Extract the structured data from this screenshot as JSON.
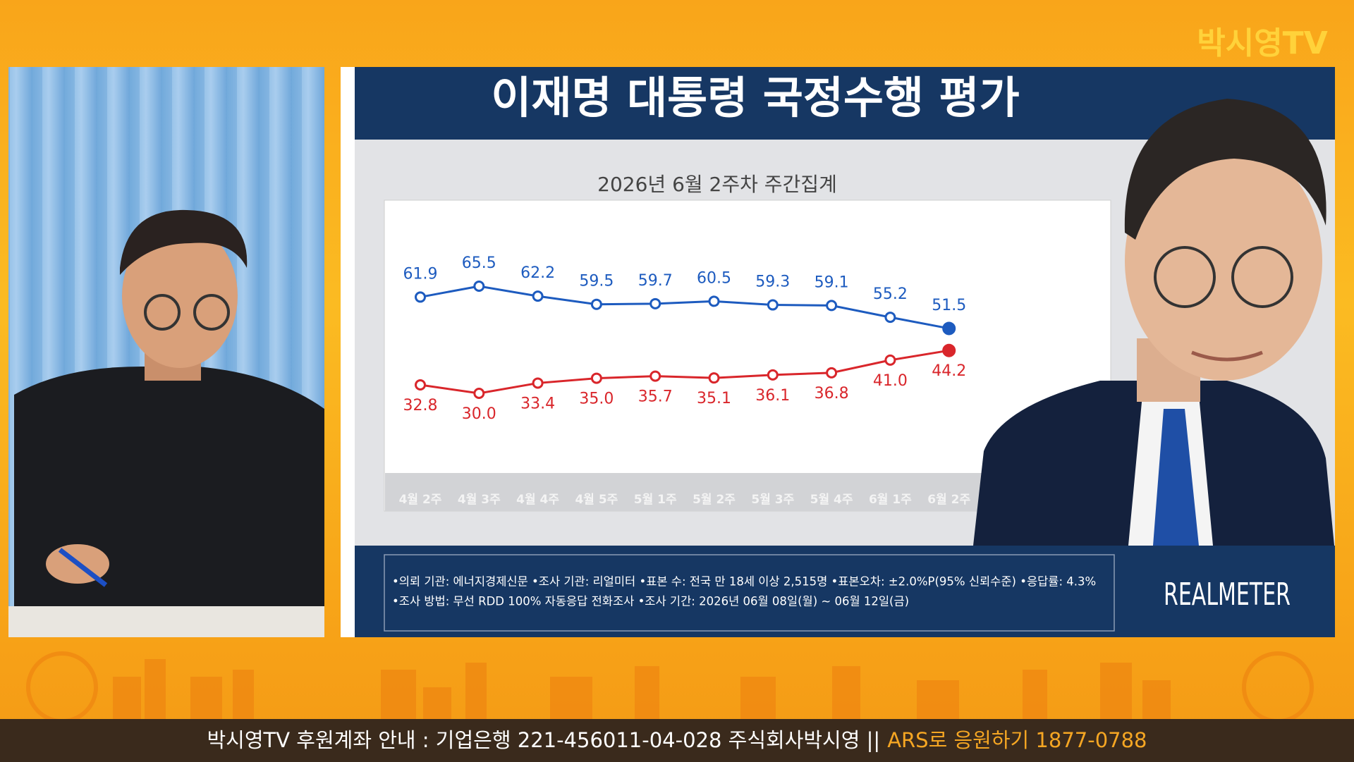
{
  "brand": "박시영TV",
  "slide_title": "이재명 대통령 국정수행 평가",
  "chart_data": {
    "type": "line",
    "title": "2026년 6월 2주차 주간집계",
    "categories": [
      "4월 2주",
      "4월 3주",
      "4월 4주",
      "4월 5주",
      "5월 1주",
      "5월 2주",
      "5월 3주",
      "5월 4주",
      "6월 1주",
      "6월 2주"
    ],
    "series": [
      {
        "color": "#1d5bbf",
        "values": [
          61.9,
          65.5,
          62.2,
          59.5,
          59.7,
          60.5,
          59.3,
          59.1,
          55.2,
          51.5
        ],
        "value_labels": [
          "61.9",
          "65.5",
          "62.2",
          "59.5",
          "59.7",
          "60.5",
          "59.3",
          "59.1",
          "55.2",
          "51.5"
        ]
      },
      {
        "color": "#d9262b",
        "values": [
          32.8,
          30.0,
          33.4,
          35.0,
          35.7,
          35.1,
          36.1,
          36.8,
          41.0,
          44.2
        ],
        "value_labels": [
          "32.8",
          "30.0",
          "33.4",
          "35.0",
          "35.7",
          "35.1",
          "36.1",
          "36.8",
          "41.0",
          "44.2"
        ]
      }
    ]
  },
  "footnotes": [
    "•의뢰 기관: 에너지경제신문 •조사 기관: 리얼미터 •표본 수: 전국 만 18세 이상 2,515명 •표본오차: ±2.0%P(95% 신뢰수준) •응답률: 4.3%",
    "•조사 방법: 무선 RDD 100% 자동응답 전화조사 •조사 기간: 2026년 06월 08일(월) ~ 06월 12일(금)"
  ],
  "logo": "REALMETER",
  "ticker": {
    "account": "박시영TV 후원계좌 안내 : 기업은행 221-456011-04-028 주식회사박시영 ||",
    "ars": "ARS로 응원하기 1877-0788"
  }
}
